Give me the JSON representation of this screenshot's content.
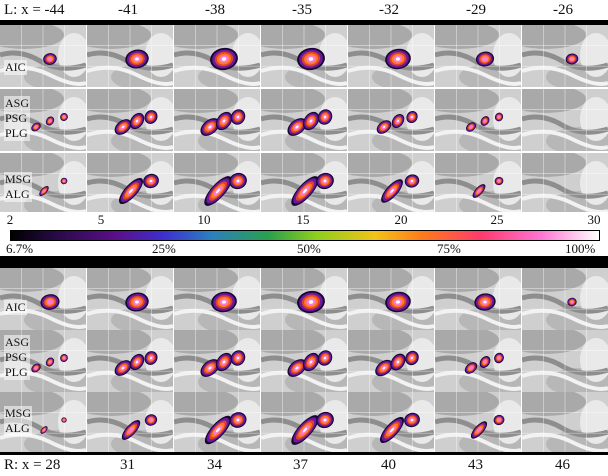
{
  "left_hemisphere": {
    "coords": [
      "L: x = -44",
      "-41",
      "-38",
      "-35",
      "-32",
      "-29",
      "-26"
    ],
    "region_labels": [
      "AIC",
      "ASG\nPSG\nPLG",
      "MSG\nALG"
    ]
  },
  "right_hemisphere": {
    "coords": [
      "R: x = 28",
      "31",
      "34",
      "37",
      "40",
      "43",
      "46"
    ],
    "region_labels": [
      "AIC",
      "ASG\nPSG\nPLG",
      "MSG\nALG"
    ]
  },
  "colorbar": {
    "ticks": [
      "2",
      "5",
      "10",
      "15",
      "20",
      "25",
      "30"
    ],
    "percent_labels": [
      "6.7%",
      "25%",
      "50%",
      "75%",
      "100%"
    ],
    "gradient_colors": [
      "#000000",
      "#5b0f8a",
      "#3d2fd0",
      "#2aa14a",
      "#f2c318",
      "#ff7a1a",
      "#ff74d2",
      "#ffffff"
    ]
  }
}
